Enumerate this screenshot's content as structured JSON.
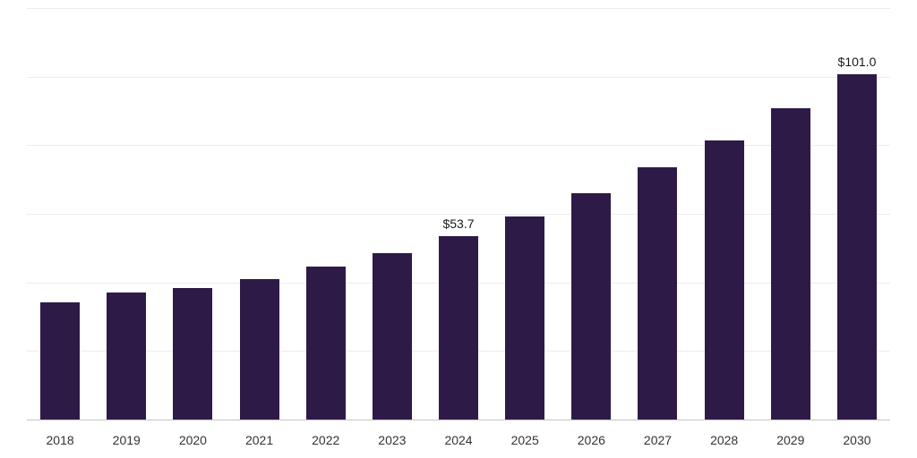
{
  "chart_data": {
    "type": "bar",
    "title": "",
    "xlabel": "",
    "ylabel": "",
    "categories": [
      "2018",
      "2019",
      "2020",
      "2021",
      "2022",
      "2023",
      "2024",
      "2025",
      "2026",
      "2027",
      "2028",
      "2029",
      "2030"
    ],
    "values": [
      34.5,
      37.3,
      38.7,
      41.3,
      44.8,
      48.8,
      53.7,
      59.4,
      66.3,
      73.7,
      81.7,
      91.0,
      101.0
    ],
    "data_labels": [
      "",
      "",
      "",
      "",
      "",
      "",
      "$53.7",
      "",
      "",
      "",
      "",
      "",
      "$101.0"
    ],
    "ylim": [
      0,
      120
    ],
    "gridline_interval": 20,
    "grid": true,
    "legend": "none",
    "colors": {
      "bar": "#2e1a47",
      "gridline": "#ececec",
      "axis_line": "#c4c4c4",
      "value_label": "#1a1a1a",
      "tick_label": "#333333",
      "background": "#ffffff"
    }
  }
}
